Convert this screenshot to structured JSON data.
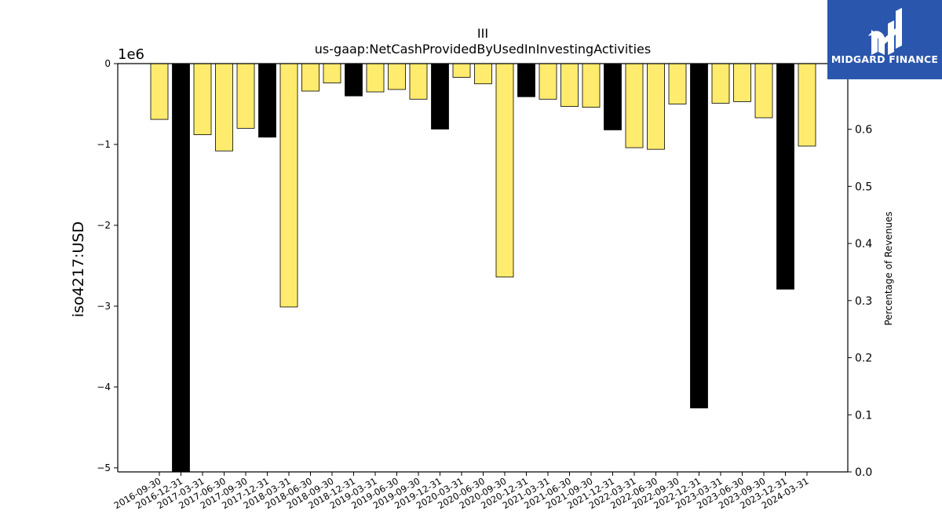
{
  "brand": {
    "name": "MIDGARD FINANCE",
    "logo_bg": "#2b56ad",
    "logo_icon": "midgard-logo-icon"
  },
  "chart_data": {
    "type": "bar",
    "title": "III",
    "subtitle": "us-gaap:NetCashProvidedByUsedInInvestingActivities",
    "ylabel": "iso4217:USD",
    "y_offset_label": "1e6",
    "y2label": "Percentage of Revenues",
    "ylim": [
      -5050000,
      0
    ],
    "y2lim": [
      0.0,
      0.715
    ],
    "yticks": [
      0,
      -1,
      -2,
      -3,
      -4,
      -5
    ],
    "y2ticks": [
      "0.0",
      "0.1",
      "0.2",
      "0.3",
      "0.4",
      "0.5",
      "0.6"
    ],
    "grid": false,
    "colors": {
      "quarter": "#ffec6e",
      "year_end": "#000000"
    },
    "categories": [
      "2016-09-30",
      "2016-12-31",
      "2017-03-31",
      "2017-06-30",
      "2017-09-30",
      "2017-12-31",
      "2018-03-31",
      "2018-06-30",
      "2018-09-30",
      "2018-12-31",
      "2019-03-31",
      "2019-06-30",
      "2019-09-30",
      "2019-12-31",
      "2020-03-31",
      "2020-06-30",
      "2020-09-30",
      "2020-12-31",
      "2021-03-31",
      "2021-06-30",
      "2021-09-30",
      "2021-12-31",
      "2022-03-31",
      "2022-06-30",
      "2022-09-30",
      "2022-12-31",
      "2023-03-31",
      "2023-06-30",
      "2023-09-30",
      "2023-12-31",
      "2024-03-31"
    ],
    "values": [
      -690000,
      -5050000,
      -880000,
      -1080000,
      -800000,
      -910000,
      -3010000,
      -340000,
      -240000,
      -400000,
      -350000,
      -320000,
      -440000,
      -810000,
      -170000,
      -250000,
      -2640000,
      -410000,
      -440000,
      -530000,
      -540000,
      -820000,
      -1040000,
      -1060000,
      -500000,
      -4260000,
      -490000,
      -470000,
      -670000,
      -2790000,
      -1020000
    ],
    "year_end": [
      false,
      true,
      false,
      false,
      false,
      true,
      false,
      false,
      false,
      true,
      false,
      false,
      false,
      true,
      false,
      false,
      false,
      true,
      false,
      false,
      false,
      true,
      false,
      false,
      false,
      true,
      false,
      false,
      false,
      true,
      false
    ]
  }
}
